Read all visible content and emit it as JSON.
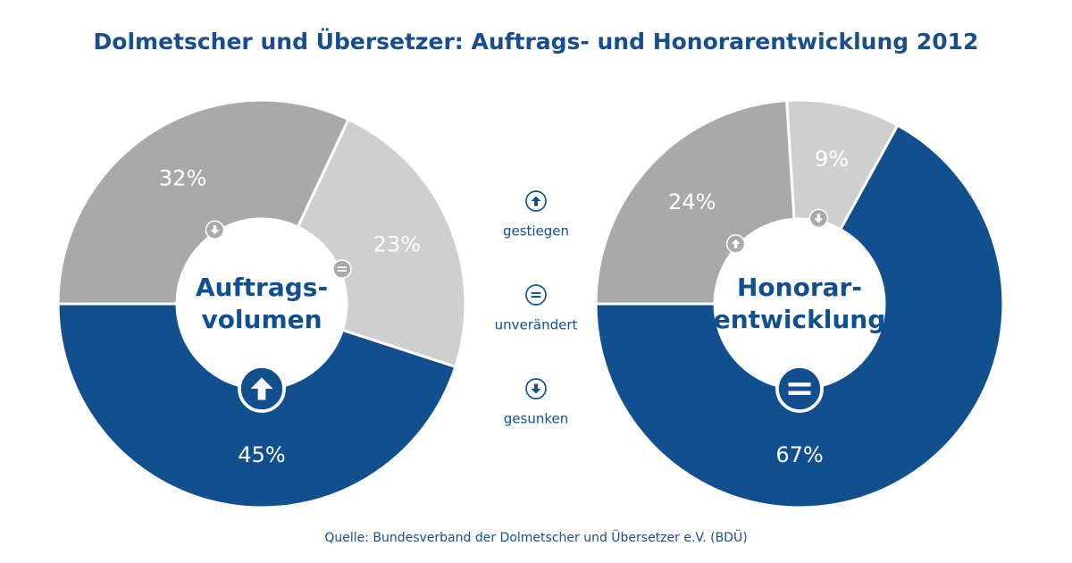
{
  "title": "Dolmetscher und Übersetzer: Auftrags- und Honorarentwicklung 2012",
  "source": "Quelle: Bundesverband der Dolmetscher und Übersetzer e.V. (BDÜ)",
  "categories": [
    "gestiegen",
    "unverändert",
    "gesunken"
  ],
  "chart_data": [
    {
      "type": "pie",
      "center_label": [
        "Auftrags-",
        "volumen"
      ],
      "values": [
        45,
        23,
        32
      ],
      "value_labels": [
        "45%",
        "23%",
        "32%"
      ],
      "colors": [
        "#124f8f",
        "#cfcfcf",
        "#a9a9a9"
      ]
    },
    {
      "type": "pie",
      "center_label": [
        "Honorar-",
        "entwicklung"
      ],
      "values": [
        24,
        67,
        9
      ],
      "value_labels": [
        "24%",
        "67%",
        "9%"
      ],
      "colors": [
        "#a9a9a9",
        "#124f8f",
        "#cfcfcf"
      ]
    }
  ]
}
